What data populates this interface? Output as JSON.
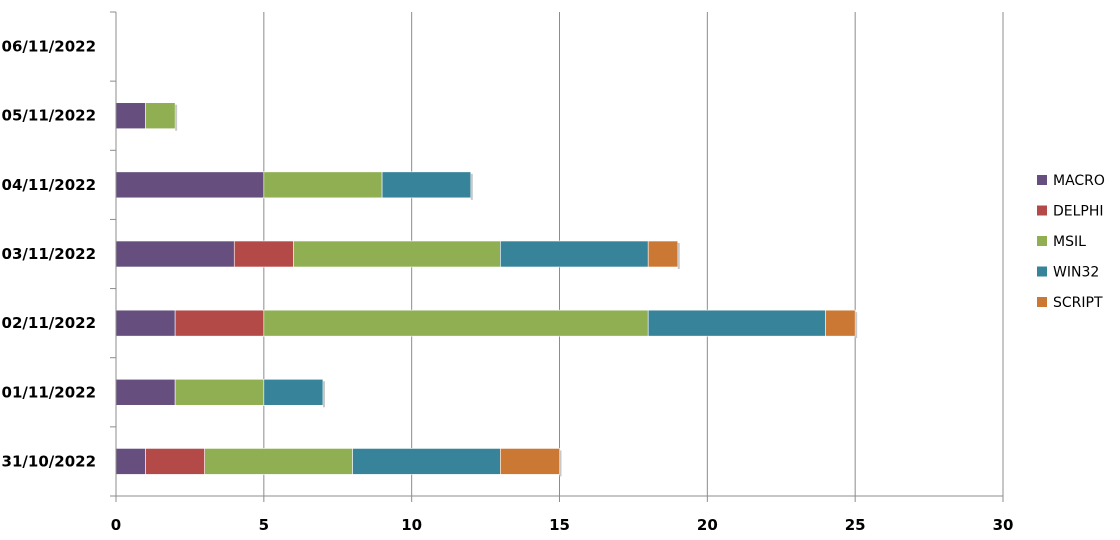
{
  "chart_data": {
    "type": "bar",
    "orientation": "horizontal",
    "stacked": true,
    "categories": [
      "31/10/2022",
      "01/11/2022",
      "02/11/2022",
      "03/11/2022",
      "04/11/2022",
      "05/11/2022",
      "06/11/2022"
    ],
    "series": [
      {
        "name": "MACRO",
        "color": "#664F7E",
        "values": [
          1,
          2,
          2,
          4,
          5,
          1,
          0
        ]
      },
      {
        "name": "DELPHI",
        "color": "#B44A48",
        "values": [
          2,
          0,
          3,
          2,
          0,
          0,
          0
        ]
      },
      {
        "name": "MSIL",
        "color": "#8FAF52",
        "values": [
          5,
          3,
          13,
          7,
          4,
          1,
          0
        ]
      },
      {
        "name": "WIN32",
        "color": "#378399",
        "values": [
          5,
          2,
          6,
          5,
          3,
          0,
          0
        ]
      },
      {
        "name": "SCRIPT",
        "color": "#CA7834",
        "values": [
          2,
          0,
          1,
          1,
          0,
          0,
          0
        ]
      }
    ],
    "xlim": [
      0,
      30
    ],
    "xticks": [
      "0",
      "5",
      "10",
      "15",
      "20",
      "25",
      "30"
    ],
    "grid": "vertical",
    "legend": "right"
  }
}
